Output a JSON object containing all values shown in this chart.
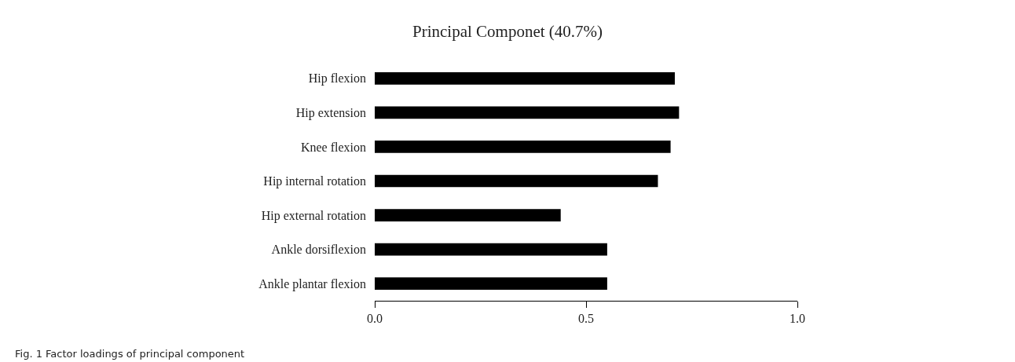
{
  "chart_data": {
    "type": "bar",
    "orientation": "horizontal",
    "title": "Principal Componet (40.7%)",
    "categories": [
      "Hip flexion",
      "Hip extension",
      "Knee flexion",
      "Hip internal rotation",
      "Hip external rotation",
      "Ankle dorsiflexion",
      "Ankle plantar flexion"
    ],
    "values": [
      0.71,
      0.72,
      0.7,
      0.67,
      0.44,
      0.55,
      0.55
    ],
    "color": "#000000",
    "xlim": [
      0,
      1
    ],
    "xticks": [
      {
        "value": 0,
        "label": "0.0"
      },
      {
        "value": 0.5,
        "label": "0.5"
      },
      {
        "value": 1,
        "label": "1.0"
      }
    ],
    "grid": false,
    "annotations": [
      "Fig. 1 Factor loadings of principal component"
    ]
  }
}
